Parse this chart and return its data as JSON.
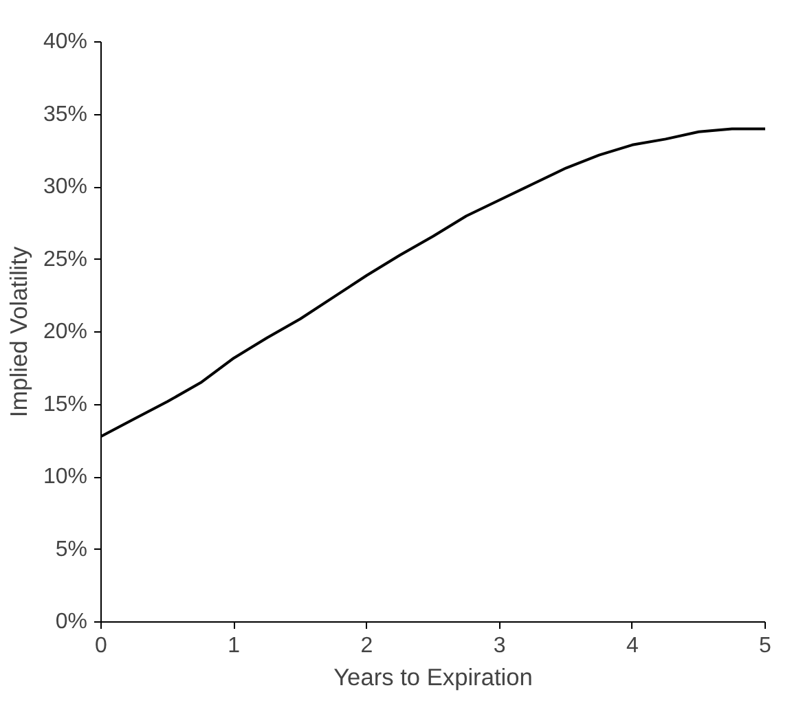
{
  "chart_data": {
    "type": "line",
    "xlabel": "Years to Expiration",
    "ylabel": "Implied Volatility",
    "x": [
      0,
      0.25,
      0.5,
      0.75,
      1,
      1.25,
      1.5,
      1.75,
      2,
      2.25,
      2.5,
      2.75,
      3,
      3.25,
      3.5,
      3.75,
      4,
      4.25,
      4.5,
      4.75,
      5
    ],
    "series": [
      {
        "color": "#000000",
        "values": [
          12.8,
          14.0,
          15.2,
          16.5,
          18.2,
          19.6,
          20.9,
          22.4,
          23.9,
          25.3,
          26.6,
          28.0,
          29.1,
          30.2,
          31.3,
          32.2,
          32.9,
          33.3,
          33.8,
          34.0,
          34.0
        ]
      }
    ],
    "xlim": [
      0,
      5
    ],
    "xticks": [
      0,
      1,
      2,
      3,
      4,
      5
    ],
    "ylim": [
      0,
      40
    ],
    "yticks": [
      {
        "value": 0,
        "label": "0%"
      },
      {
        "value": 5,
        "label": "5%"
      },
      {
        "value": 10,
        "label": "10%"
      },
      {
        "value": 15,
        "label": "15%"
      },
      {
        "value": 20,
        "label": "20%"
      },
      {
        "value": 25,
        "label": "25%"
      },
      {
        "value": 30,
        "label": "30%"
      },
      {
        "value": 35,
        "label": "35%"
      },
      {
        "value": 40,
        "label": "40%"
      }
    ],
    "grid": false,
    "marker": "none",
    "line_style": "solid"
  }
}
